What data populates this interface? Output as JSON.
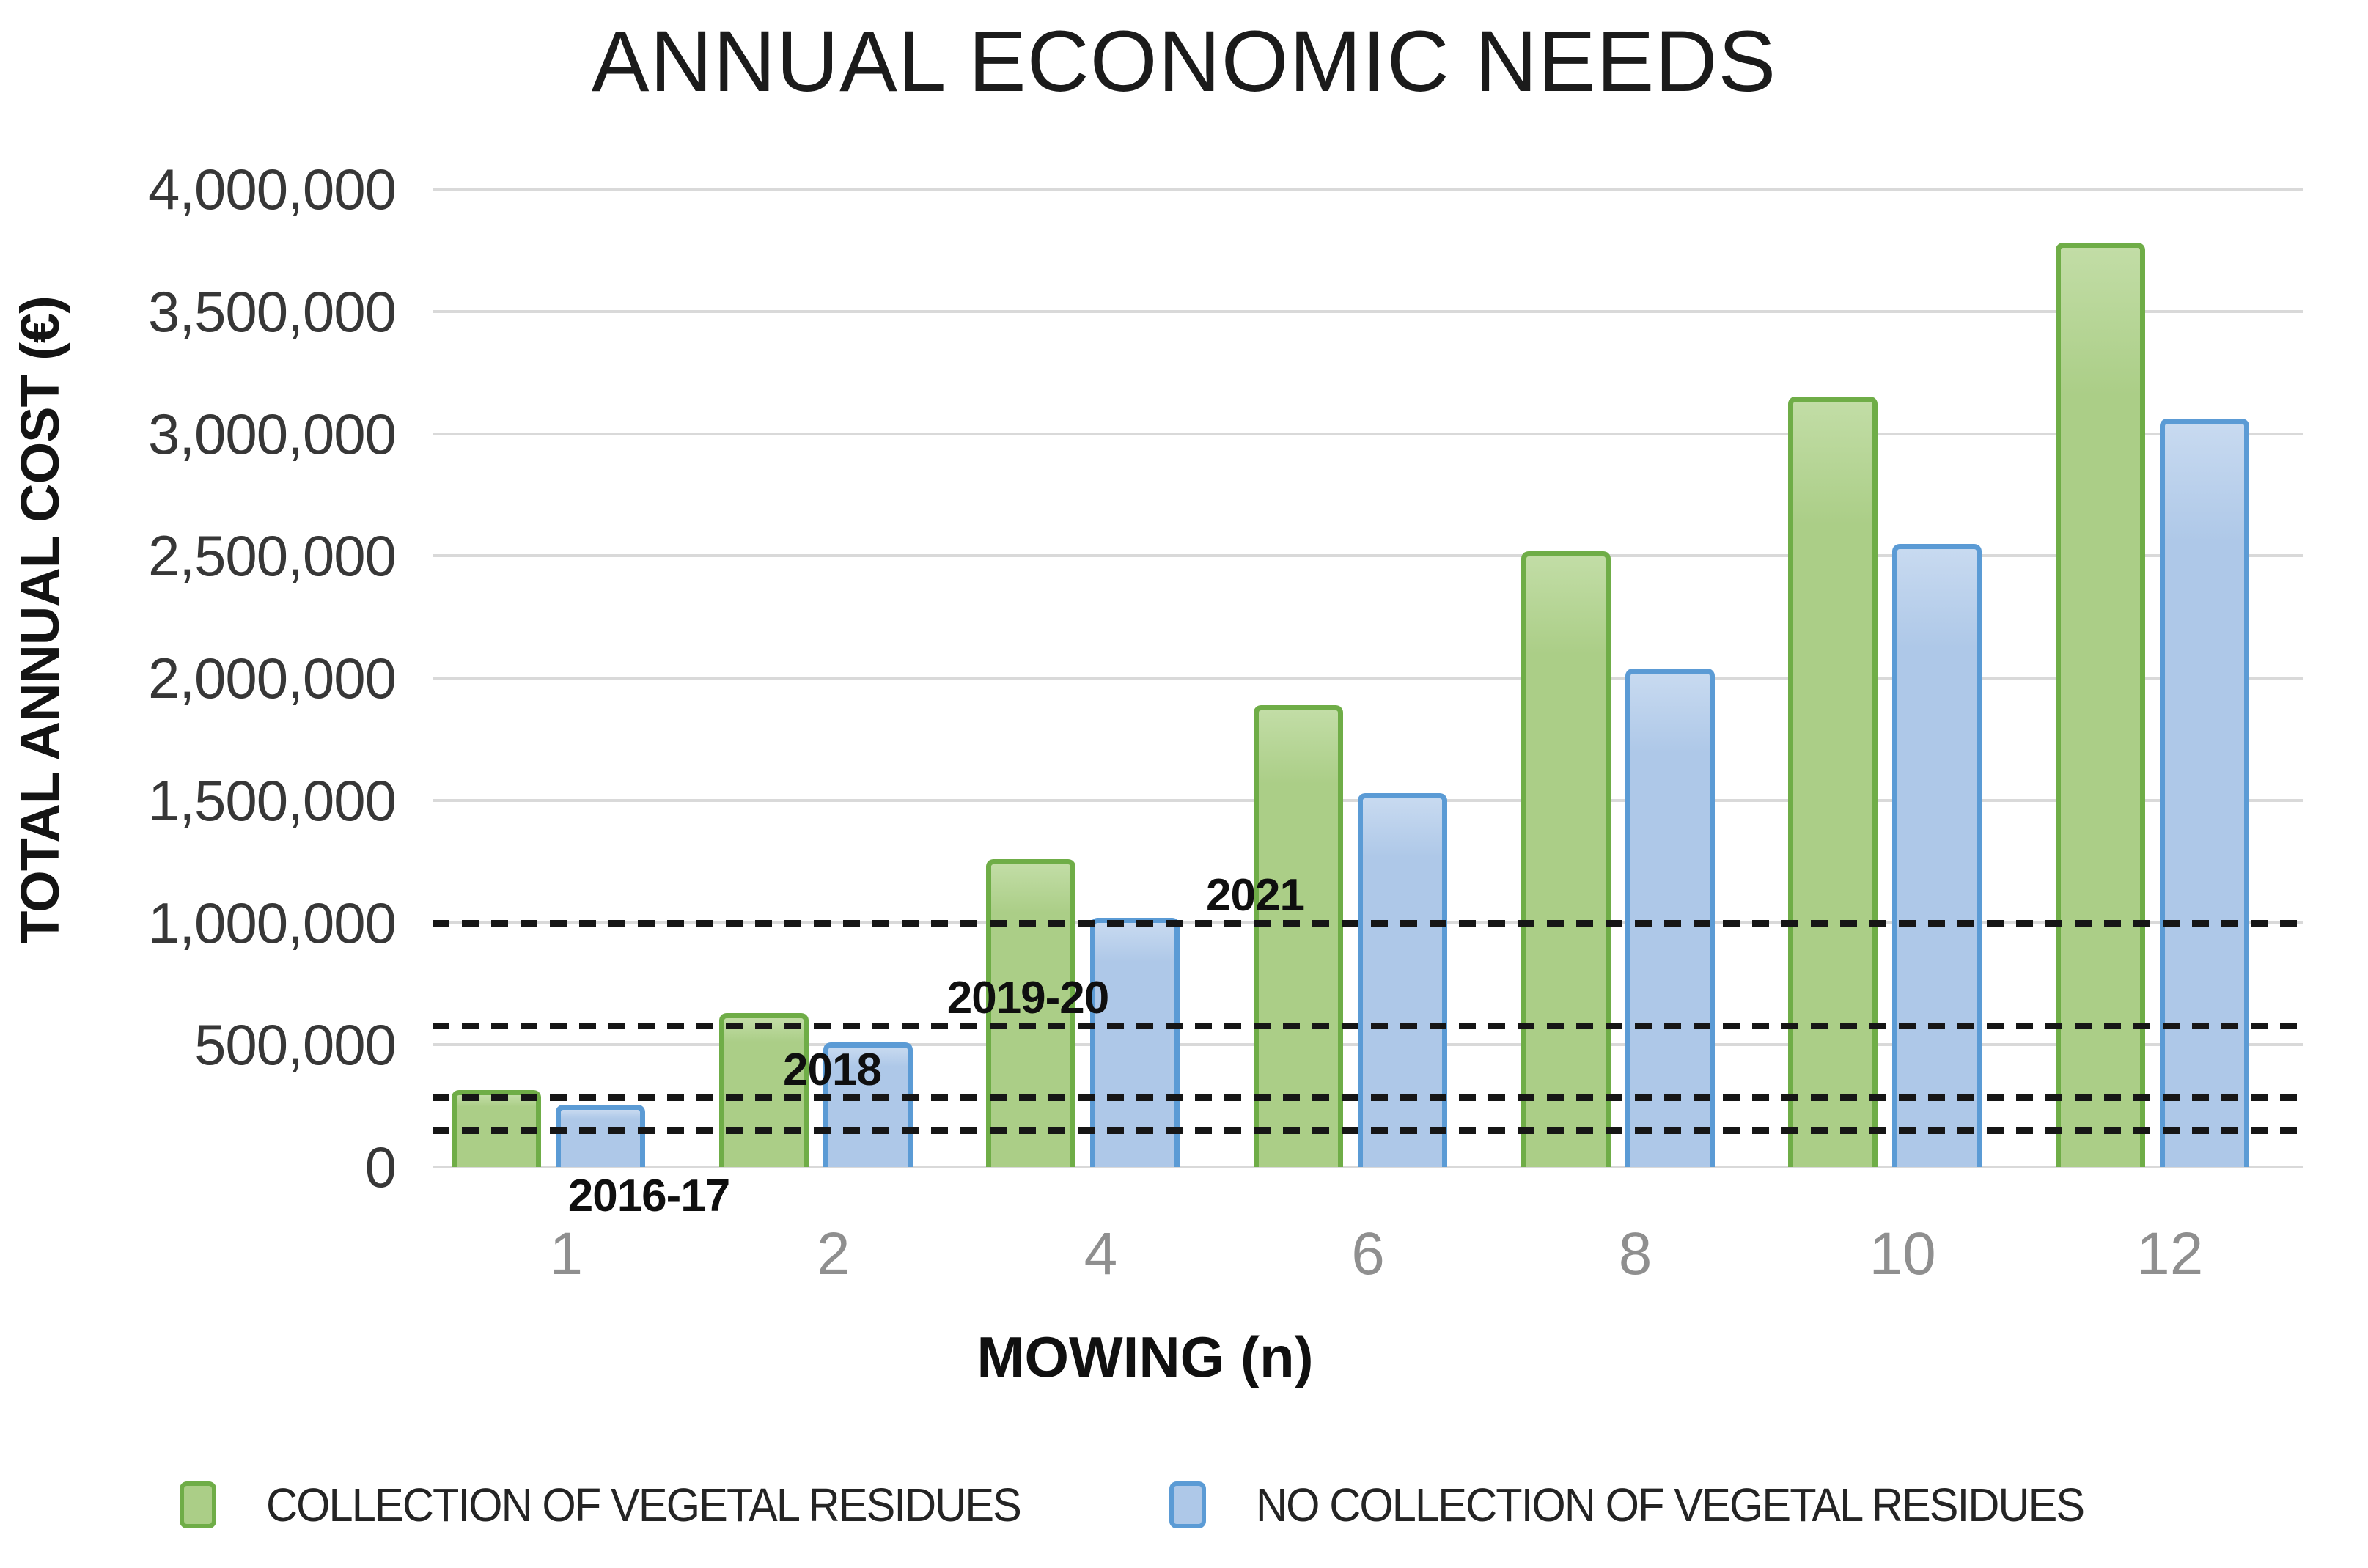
{
  "page": {
    "background": "#ffffff"
  },
  "chart_data": {
    "type": "bar",
    "title": "ANNUAL ECONOMIC NEEDS",
    "xlabel": "MOWING (n)",
    "ylabel": "TOTAL ANNUAL COST (€)",
    "categories": [
      "1",
      "2",
      "4",
      "6",
      "8",
      "10",
      "12"
    ],
    "series": [
      {
        "name": "COLLECTION OF VEGETAL RESIDUES",
        "fill": "#abce87",
        "fill_light": "#c2dda6",
        "border": "#6fad47",
        "values": [
          315000,
          630000,
          1260000,
          1890000,
          2520000,
          3150000,
          3780000
        ]
      },
      {
        "name": "NO COLLECTION OF VEGETAL RESIDUES",
        "fill": "#aec8e8",
        "fill_light": "#c8daf0",
        "border": "#5b9bd5",
        "values": [
          255000,
          510000,
          1020000,
          1530000,
          2040000,
          2550000,
          3060000
        ]
      }
    ],
    "ylim": [
      0,
      4000000
    ],
    "ytick_step": 500000,
    "ytick_labels": [
      "0",
      "500,000",
      "1,000,000",
      "1,500,000",
      "2,000,000",
      "2,500,000",
      "3,000,000",
      "3,500,000",
      "4,000,000"
    ],
    "grid": true,
    "gridline_color": "#d9d9d9",
    "legend_position": "bottom",
    "reference_lines": [
      {
        "label": "2016-17",
        "value": 150000
      },
      {
        "label": "2018",
        "value": 285000
      },
      {
        "label": "2019-20",
        "value": 580000
      },
      {
        "label": "2021",
        "value": 1000000
      }
    ],
    "reference_line_color": "#161616",
    "axis_text_color": "#373737",
    "xtick_color": "#8f8f8f"
  }
}
